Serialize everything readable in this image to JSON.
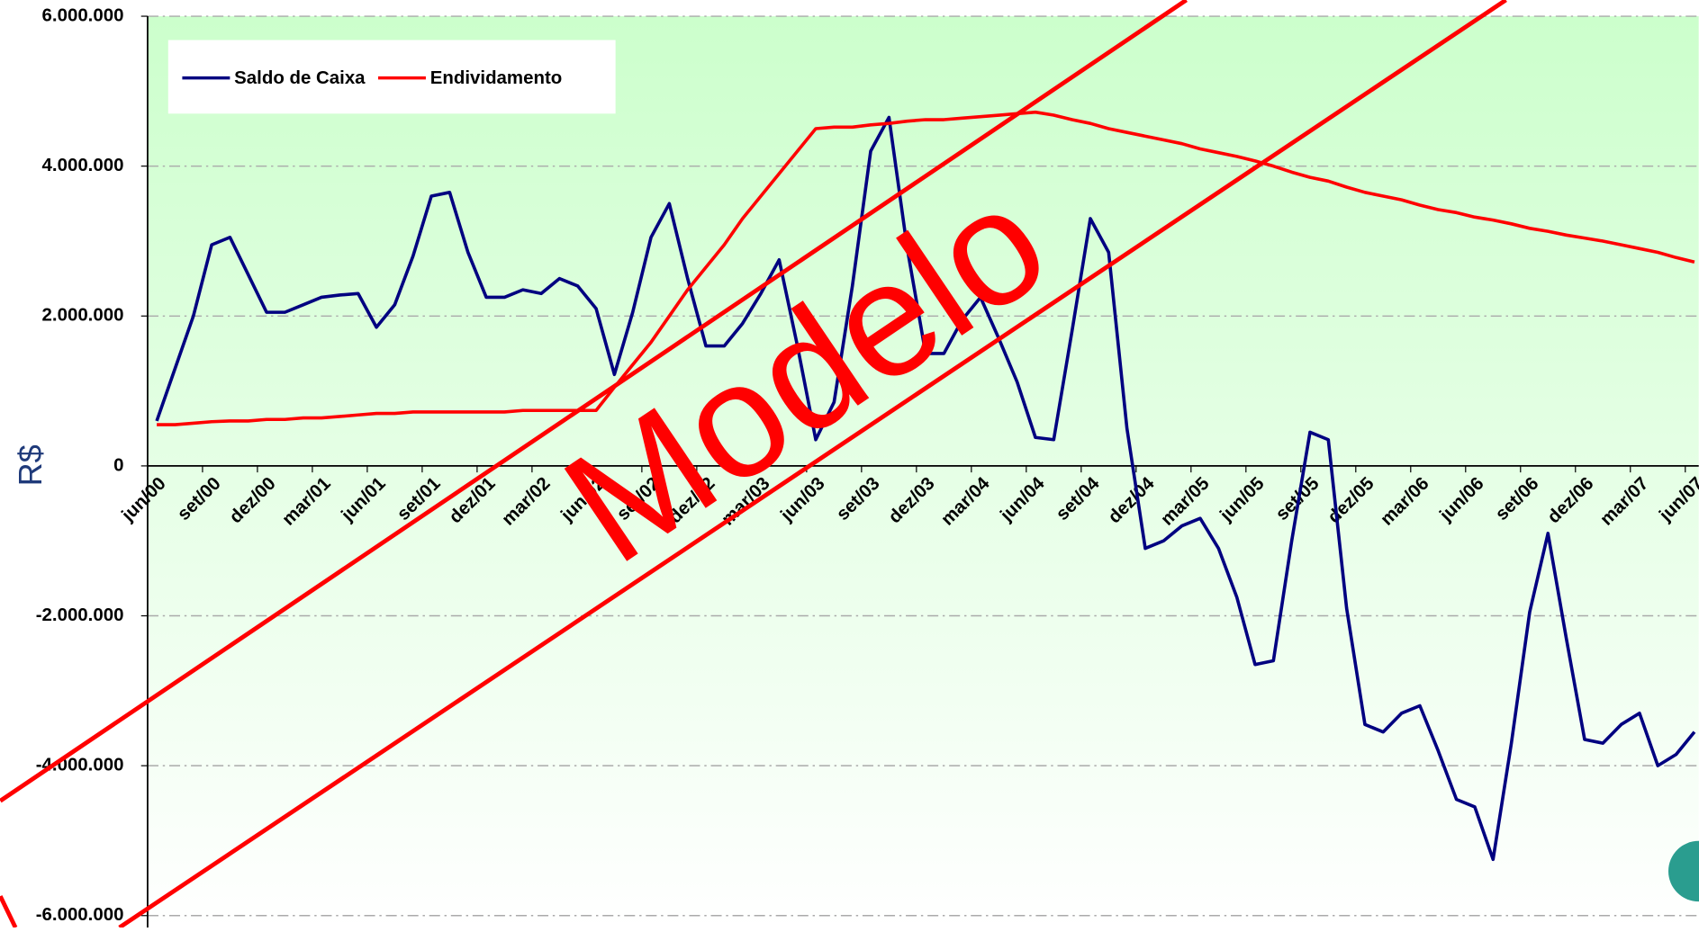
{
  "chart_data": {
    "type": "line",
    "y_label": "R$",
    "watermark": "Modelo",
    "categories": [
      "jun/00",
      null,
      null,
      "set/00",
      null,
      null,
      "dez/00",
      null,
      null,
      "mar/01",
      null,
      null,
      "jun/01",
      null,
      null,
      "set/01",
      null,
      null,
      "dez/01",
      null,
      null,
      "mar/02",
      null,
      null,
      "jun/02",
      null,
      null,
      "set/02",
      null,
      null,
      "dez/02",
      null,
      null,
      "mar/03",
      null,
      null,
      "jun/03",
      null,
      null,
      "set/03",
      null,
      null,
      "dez/03",
      null,
      null,
      "mar/04",
      null,
      null,
      "jun/04",
      null,
      null,
      "set/04",
      null,
      null,
      "dez/04",
      null,
      null,
      "mar/05",
      null,
      null,
      "jun/05",
      null,
      null,
      "set/05",
      null,
      null,
      "dez/05",
      null,
      null,
      "mar/06",
      null,
      null,
      "jun/06",
      null,
      null,
      "set/06",
      null,
      null,
      "dez/06",
      null,
      null,
      "mar/07",
      null,
      null,
      "jun/07"
    ],
    "series": [
      {
        "name": "Saldo de Caixa",
        "color": "#000080",
        "values": [
          600000,
          1300000,
          2000000,
          2950000,
          3050000,
          2550000,
          2050000,
          2050000,
          2150000,
          2250000,
          2280000,
          2300000,
          1850000,
          2150000,
          2800000,
          3600000,
          3650000,
          2850000,
          2250000,
          2250000,
          2350000,
          2300000,
          2500000,
          2400000,
          2100000,
          1220000,
          2050000,
          3050000,
          3500000,
          2500000,
          1600000,
          1600000,
          1900000,
          2300000,
          2750000,
          1600000,
          350000,
          850000,
          2400000,
          4200000,
          4650000,
          2900000,
          1500000,
          1500000,
          1950000,
          2250000,
          1700000,
          1120000,
          380000,
          350000,
          1800000,
          3300000,
          2850000,
          500000,
          -1100000,
          -1000000,
          -800000,
          -700000,
          -1100000,
          -1750000,
          -2650000,
          -2600000,
          -1000000,
          450000,
          350000,
          -1900000,
          -3450000,
          -3550000,
          -3300000,
          -3200000,
          -3800000,
          -4450000,
          -4550000,
          -5250000,
          -3700000,
          -1950000,
          -900000,
          -2300000,
          -3650000,
          -3700000,
          -3450000,
          -3300000,
          -4000000,
          -3850000,
          -3550000
        ]
      },
      {
        "name": "Endividamento",
        "color": "#ff0000",
        "values": [
          550000,
          550000,
          570000,
          590000,
          600000,
          600000,
          620000,
          620000,
          640000,
          640000,
          660000,
          680000,
          700000,
          700000,
          720000,
          720000,
          720000,
          720000,
          720000,
          720000,
          740000,
          740000,
          740000,
          740000,
          740000,
          1050000,
          1350000,
          1650000,
          2000000,
          2350000,
          2650000,
          2950000,
          3300000,
          3600000,
          3900000,
          4200000,
          4500000,
          4520000,
          4520000,
          4550000,
          4570000,
          4600000,
          4620000,
          4620000,
          4640000,
          4660000,
          4680000,
          4700000,
          4720000,
          4680000,
          4620000,
          4570000,
          4500000,
          4450000,
          4400000,
          4350000,
          4300000,
          4230000,
          4180000,
          4130000,
          4070000,
          4000000,
          3920000,
          3850000,
          3800000,
          3720000,
          3650000,
          3600000,
          3550000,
          3480000,
          3420000,
          3380000,
          3320000,
          3280000,
          3230000,
          3170000,
          3130000,
          3080000,
          3040000,
          3000000,
          2950000,
          2900000,
          2850000,
          2780000,
          2720000
        ]
      }
    ],
    "ylim": [
      -6000000,
      6000000
    ],
    "yticks": [
      {
        "value": -6000000,
        "label": "-6.000.000"
      },
      {
        "value": -4000000,
        "label": "-4.000.000"
      },
      {
        "value": -2000000,
        "label": "-2.000.000"
      },
      0,
      {
        "value": 2000000,
        "label": "2.000.000"
      },
      {
        "value": 4000000,
        "label": "4.000.000"
      },
      {
        "value": 6000000,
        "label": "6.000.000"
      }
    ],
    "grid": true,
    "legend": "top-left"
  }
}
